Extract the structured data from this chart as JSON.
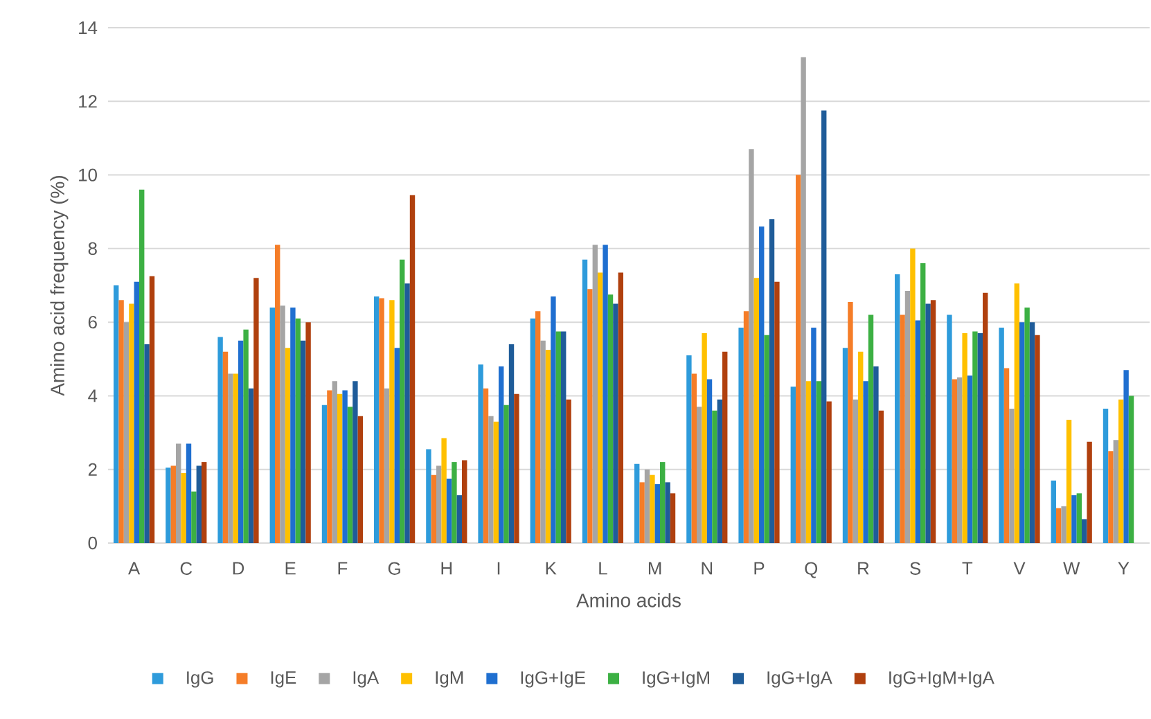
{
  "chart_data": {
    "type": "bar",
    "xlabel": "Amino acids",
    "ylabel": "Amino acid frequency (%)",
    "categories": [
      "A",
      "C",
      "D",
      "E",
      "F",
      "G",
      "H",
      "I",
      "K",
      "L",
      "M",
      "N",
      "P",
      "Q",
      "R",
      "S",
      "T",
      "V",
      "W",
      "Y"
    ],
    "ylim": [
      0,
      14
    ],
    "yticks": [
      0,
      2,
      4,
      6,
      8,
      10,
      12,
      14
    ],
    "grid": "y",
    "legend": "bottom",
    "series": [
      {
        "name": "IgG",
        "color": "#2e9bdb",
        "values": [
          7.0,
          2.05,
          5.6,
          6.4,
          3.75,
          6.7,
          2.55,
          4.85,
          6.1,
          7.7,
          2.15,
          5.1,
          5.85,
          4.25,
          5.3,
          7.3,
          6.2,
          5.85,
          1.7,
          3.65
        ]
      },
      {
        "name": "IgE",
        "color": "#f57d28",
        "values": [
          6.6,
          2.1,
          5.2,
          8.1,
          4.15,
          6.65,
          1.85,
          4.2,
          6.3,
          6.9,
          1.65,
          4.6,
          6.3,
          10.0,
          6.55,
          6.2,
          4.45,
          4.75,
          0.95,
          2.5
        ]
      },
      {
        "name": "IgA",
        "color": "#a5a5a5",
        "values": [
          6.0,
          2.7,
          4.6,
          6.45,
          4.4,
          4.2,
          2.1,
          3.45,
          5.5,
          8.1,
          2.0,
          3.7,
          10.7,
          13.2,
          3.9,
          6.85,
          4.5,
          3.65,
          1.0,
          2.8
        ]
      },
      {
        "name": "IgM",
        "color": "#ffc000",
        "values": [
          6.5,
          1.9,
          4.6,
          5.3,
          4.05,
          6.6,
          2.85,
          3.3,
          5.25,
          7.35,
          1.85,
          5.7,
          7.2,
          4.4,
          5.2,
          8.0,
          5.7,
          7.05,
          3.35,
          3.9
        ]
      },
      {
        "name": "IgG+IgE",
        "color": "#1f6fd0",
        "values": [
          7.1,
          2.7,
          5.5,
          6.4,
          4.15,
          5.3,
          1.75,
          4.8,
          6.7,
          8.1,
          1.6,
          4.45,
          8.6,
          5.85,
          4.4,
          6.05,
          4.55,
          6.0,
          1.3,
          4.7
        ]
      },
      {
        "name": "IgG+IgM",
        "color": "#3cb043",
        "values": [
          9.6,
          1.4,
          5.8,
          6.1,
          3.7,
          7.7,
          2.2,
          3.75,
          5.75,
          6.75,
          2.2,
          3.6,
          5.65,
          4.4,
          6.2,
          7.6,
          5.75,
          6.4,
          1.35,
          4.0
        ]
      },
      {
        "name": "IgG+IgA",
        "color": "#1f5c99",
        "values": [
          5.4,
          2.1,
          4.2,
          5.5,
          4.4,
          7.05,
          1.3,
          5.4,
          5.75,
          6.5,
          1.65,
          3.9,
          8.8,
          11.75,
          4.8,
          6.5,
          5.7,
          6.0,
          0.65,
          null
        ]
      },
      {
        "name": "IgG+IgM+IgA",
        "color": "#b0400e",
        "values": [
          7.25,
          2.2,
          7.2,
          6.0,
          3.45,
          9.45,
          2.25,
          4.05,
          3.9,
          7.35,
          1.35,
          5.2,
          7.1,
          3.85,
          3.6,
          6.6,
          6.8,
          5.65,
          2.75,
          null
        ]
      }
    ]
  }
}
